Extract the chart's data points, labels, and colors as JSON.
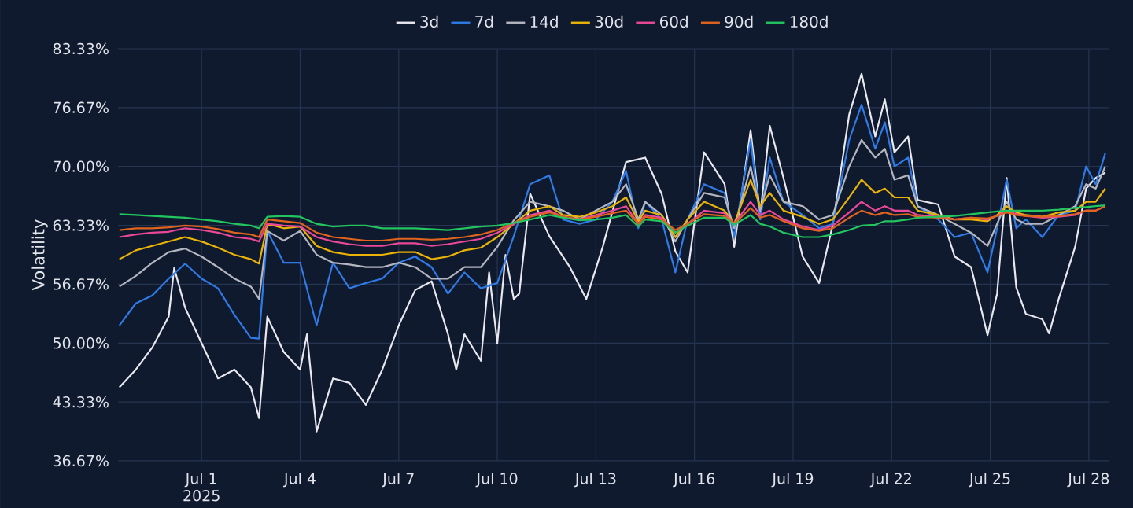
{
  "chart_data": {
    "type": "line",
    "ylabel": "Volatility",
    "legend": "top",
    "grid": true,
    "marker": "none",
    "line_style": "solid",
    "annotations": [
      "2025"
    ],
    "xlim": [
      "2025-06-28T11:00",
      "2025-07-28T15:00"
    ],
    "xticks": [
      {
        "value": "2025-07-01",
        "label": "Jul 1"
      },
      {
        "value": "2025-07-04",
        "label": "Jul 4"
      },
      {
        "value": "2025-07-07",
        "label": "Jul 7"
      },
      {
        "value": "2025-07-10",
        "label": "Jul 10"
      },
      {
        "value": "2025-07-13",
        "label": "Jul 13"
      },
      {
        "value": "2025-07-16",
        "label": "Jul 16"
      },
      {
        "value": "2025-07-19",
        "label": "Jul 19"
      },
      {
        "value": "2025-07-22",
        "label": "Jul 22"
      },
      {
        "value": "2025-07-25",
        "label": "Jul 25"
      },
      {
        "value": "2025-07-28",
        "label": "Jul 28"
      }
    ],
    "ylim": [
      36.67,
      83.33
    ],
    "yticks": [
      {
        "value": 36.67,
        "label": "36.67%"
      },
      {
        "value": 43.33,
        "label": "43.33%"
      },
      {
        "value": 50.0,
        "label": "50.00%"
      },
      {
        "value": 56.67,
        "label": "56.67%"
      },
      {
        "value": 63.33,
        "label": "63.33%"
      },
      {
        "value": 70.0,
        "label": "70.00%"
      },
      {
        "value": 76.67,
        "label": "76.67%"
      },
      {
        "value": 83.33,
        "label": "83.33%"
      }
    ],
    "x": [
      "2025-06-28T12:00",
      "2025-06-29T00:00",
      "2025-06-29T12:00",
      "2025-06-30T00:00",
      "2025-06-30T12:00",
      "2025-07-01T00:00",
      "2025-07-01T12:00",
      "2025-07-02T00:00",
      "2025-07-02T12:00",
      "2025-07-02T18:00",
      "2025-07-03T00:00",
      "2025-07-03T12:00",
      "2025-07-04T00:00",
      "2025-07-04T12:00",
      "2025-07-05T00:00",
      "2025-07-05T12:00",
      "2025-07-06T00:00",
      "2025-07-06T12:00",
      "2025-07-07T00:00",
      "2025-07-07T12:00",
      "2025-07-08T00:00",
      "2025-07-08T12:00",
      "2025-07-09T00:00",
      "2025-07-09T12:00",
      "2025-07-10T00:00",
      "2025-07-10T12:00",
      "2025-07-11T00:00",
      "2025-07-11T14:00",
      "2025-07-12T00:00",
      "2025-07-12T12:00",
      "2025-07-13T00:00",
      "2025-07-13T12:00",
      "2025-07-13T22:00",
      "2025-07-14T07:00",
      "2025-07-14T12:00",
      "2025-07-15T00:00",
      "2025-07-15T10:00",
      "2025-07-15T19:00",
      "2025-07-16T07:00",
      "2025-07-16T22:00",
      "2025-07-17T05:00",
      "2025-07-17T17:00",
      "2025-07-18T00:00",
      "2025-07-18T07:00",
      "2025-07-18T17:00",
      "2025-07-19T07:00",
      "2025-07-19T19:00",
      "2025-07-20T05:00",
      "2025-07-20T17:00",
      "2025-07-21T02:00",
      "2025-07-21T12:00",
      "2025-07-21T19:00",
      "2025-07-22T02:00",
      "2025-07-22T12:00",
      "2025-07-22T19:00",
      "2025-07-23T10:00",
      "2025-07-23T22:00",
      "2025-07-24T10:00",
      "2025-07-24T22:00",
      "2025-07-25T05:00",
      "2025-07-25T12:00",
      "2025-07-25T19:00",
      "2025-07-26T02:00",
      "2025-07-26T14:00",
      "2025-07-27T02:00",
      "2025-07-27T14:00",
      "2025-07-27T22:00",
      "2025-07-28T05:00",
      "2025-07-28T12:00"
    ],
    "series": [
      {
        "name": "3d",
        "color": "#e8e8ee",
        "x": [
          "2025-06-28T12:00",
          "2025-06-29T00:00",
          "2025-06-29T12:00",
          "2025-06-30T00:00",
          "2025-06-30T04:00",
          "2025-06-30T12:00",
          "2025-07-01T00:00",
          "2025-07-01T12:00",
          "2025-07-02T00:00",
          "2025-07-02T12:00",
          "2025-07-02T18:00",
          "2025-07-03T00:00",
          "2025-07-03T12:00",
          "2025-07-04T00:00",
          "2025-07-04T05:00",
          "2025-07-04T12:00",
          "2025-07-05T00:00",
          "2025-07-05T12:00",
          "2025-07-06T00:00",
          "2025-07-06T12:00",
          "2025-07-07T00:00",
          "2025-07-07T12:00",
          "2025-07-08T00:00",
          "2025-07-08T12:00",
          "2025-07-08T18:00",
          "2025-07-09T00:00",
          "2025-07-09T12:00",
          "2025-07-09T18:00",
          "2025-07-10T00:00",
          "2025-07-10T06:00",
          "2025-07-10T12:00",
          "2025-07-10T16:00",
          "2025-07-11T00:00",
          "2025-07-11T14:00",
          "2025-07-12T05:00",
          "2025-07-12T17:00",
          "2025-07-13T05:00",
          "2025-07-13T22:00",
          "2025-07-14T12:00",
          "2025-07-15T00:00",
          "2025-07-15T10:00",
          "2025-07-15T19:00",
          "2025-07-16T07:00",
          "2025-07-16T22:00",
          "2025-07-17T05:00",
          "2025-07-17T17:00",
          "2025-07-18T00:00",
          "2025-07-18T07:00",
          "2025-07-18T17:00",
          "2025-07-19T07:00",
          "2025-07-19T19:00",
          "2025-07-20T05:00",
          "2025-07-20T17:00",
          "2025-07-21T02:00",
          "2025-07-21T12:00",
          "2025-07-21T19:00",
          "2025-07-22T02:00",
          "2025-07-22T12:00",
          "2025-07-22T19:00",
          "2025-07-23T10:00",
          "2025-07-23T22:00",
          "2025-07-24T10:00",
          "2025-07-24T22:00",
          "2025-07-25T05:00",
          "2025-07-25T12:00",
          "2025-07-25T19:00",
          "2025-07-26T02:00",
          "2025-07-26T14:00",
          "2025-07-26T19:00",
          "2025-07-27T02:00",
          "2025-07-27T14:00",
          "2025-07-27T22:00",
          "2025-07-28T05:00",
          "2025-07-28T12:00"
        ],
        "values": [
          45,
          47,
          49.5,
          53,
          58.5,
          54,
          50,
          46,
          47,
          45,
          41.5,
          53,
          49,
          47,
          51,
          40,
          46,
          45.5,
          43,
          47,
          52,
          56,
          57,
          51,
          47,
          51,
          48,
          58,
          50,
          60,
          55,
          55.6,
          66.9,
          62.1,
          58.6,
          55,
          60.9,
          70.5,
          71,
          66.9,
          60.4,
          58,
          71.6,
          68,
          60.9,
          74.1,
          64.5,
          74.6,
          68.7,
          59.8,
          56.8,
          63.4,
          75.9,
          80.5,
          73.4,
          77.6,
          71.6,
          73.4,
          66.2,
          65.7,
          59.8,
          58.6,
          50.9,
          55.6,
          68.7,
          56.3,
          53.3,
          52.7,
          51.1,
          55,
          60.9,
          67.5,
          68.7,
          69.3
        ]
      },
      {
        "name": "7d",
        "color": "#2f7ae5",
        "values": [
          52,
          54.5,
          55.4,
          57.3,
          59,
          57.3,
          56.2,
          53.2,
          50.6,
          50.5,
          62.7,
          59.1,
          59.1,
          52,
          59.1,
          56.2,
          56.8,
          57.3,
          59.1,
          59.8,
          58.6,
          55.6,
          58,
          56.2,
          56.8,
          62.1,
          68,
          69,
          64,
          63.5,
          64,
          66,
          69.5,
          63,
          66,
          64,
          58,
          64,
          68,
          67,
          62,
          73,
          64,
          71,
          66,
          64.5,
          63,
          63.5,
          73,
          77,
          72,
          75,
          70,
          71,
          65.5,
          64,
          62,
          62.5,
          58,
          63,
          68.5,
          63,
          64,
          62,
          64.5,
          65,
          70,
          68,
          71.5
        ]
      },
      {
        "name": "14d",
        "color": "#b4b6c0",
        "values": [
          56.4,
          57.6,
          59.1,
          60.3,
          60.7,
          59.8,
          58.6,
          57.3,
          56.4,
          55,
          62.7,
          61.6,
          62.7,
          60,
          59.1,
          58.9,
          58.6,
          58.6,
          59.1,
          58.6,
          57.3,
          57.3,
          58.6,
          58.6,
          60.9,
          63.9,
          66,
          65.5,
          65,
          64,
          65,
          66,
          68,
          64,
          66,
          64.5,
          61.5,
          64,
          67,
          66.5,
          63,
          70,
          65,
          69,
          66,
          65.5,
          64,
          64.5,
          70,
          73,
          71,
          72,
          68.5,
          69,
          65.5,
          64.5,
          63.5,
          62.5,
          61,
          63.5,
          66,
          64,
          63.5,
          63.5,
          64.5,
          65.5,
          68,
          67.5,
          70
        ]
      },
      {
        "name": "30d",
        "color": "#eab308",
        "values": [
          59.5,
          60.5,
          61,
          61.5,
          62,
          61.5,
          60.8,
          60,
          59.5,
          59,
          63.5,
          63,
          63.2,
          61,
          60.3,
          60,
          60,
          60,
          60.3,
          60.3,
          59.5,
          59.8,
          60.5,
          60.8,
          62,
          63.5,
          65,
          65.5,
          64.5,
          64.3,
          64.8,
          65.5,
          66.5,
          63.8,
          65,
          64.5,
          62,
          64,
          66,
          65,
          63.5,
          68.5,
          65.5,
          67,
          65,
          64.3,
          63.5,
          64,
          66.5,
          68.5,
          67,
          67.5,
          66.5,
          66.5,
          65,
          64.5,
          64,
          64,
          63.8,
          64.5,
          65.5,
          64.8,
          64.5,
          64.3,
          64.8,
          65,
          66,
          66,
          67.5
        ]
      },
      {
        "name": "60d",
        "color": "#ec4899",
        "values": [
          62,
          62.3,
          62.5,
          62.6,
          63,
          62.8,
          62.5,
          62,
          61.8,
          61.5,
          63.5,
          63.3,
          63.2,
          62,
          61.5,
          61.2,
          61,
          61,
          61.3,
          61.3,
          61,
          61.2,
          61.5,
          61.8,
          62.5,
          63.5,
          64.5,
          65,
          64.3,
          64,
          64.5,
          65,
          65.5,
          63.5,
          64.5,
          64.2,
          62.5,
          63.5,
          65,
          64.7,
          63.5,
          66,
          64.5,
          65,
          64,
          63.2,
          62.8,
          63.3,
          64.8,
          66,
          65,
          65.5,
          65,
          65,
          64.5,
          64.3,
          64,
          64.2,
          64,
          64.4,
          65,
          64.6,
          64.4,
          64.2,
          64.3,
          64.5,
          65,
          65,
          65.5
        ]
      },
      {
        "name": "90d",
        "color": "#e0641e",
        "values": [
          62.8,
          63,
          63,
          63.1,
          63.3,
          63.2,
          62.9,
          62.5,
          62.3,
          62,
          64,
          63.8,
          63.6,
          62.5,
          62,
          61.8,
          61.6,
          61.6,
          61.8,
          61.8,
          61.7,
          61.8,
          62,
          62.3,
          62.8,
          63.6,
          64.3,
          64.8,
          64.3,
          64,
          64.3,
          64.7,
          65,
          63.5,
          64.3,
          64,
          62.8,
          63.5,
          64.6,
          64.4,
          63.5,
          65.3,
          64.2,
          64.5,
          63.8,
          63,
          62.7,
          63,
          64.2,
          65,
          64.5,
          64.8,
          64.5,
          64.6,
          64.3,
          64.2,
          64,
          64.2,
          64.1,
          64.4,
          64.8,
          64.5,
          64.4,
          64.3,
          64.4,
          64.6,
          65,
          65,
          65.5
        ]
      },
      {
        "name": "180d",
        "color": "#22c55e",
        "values": [
          64.6,
          64.5,
          64.4,
          64.3,
          64.2,
          64,
          63.8,
          63.5,
          63.3,
          63,
          64.3,
          64.4,
          64.3,
          63.5,
          63.2,
          63.3,
          63.3,
          63,
          63,
          63,
          62.9,
          62.8,
          63,
          63.2,
          63.3,
          63.6,
          64,
          64.5,
          64.2,
          63.9,
          64,
          64.2,
          64.5,
          63.2,
          64,
          63.8,
          62.5,
          63.3,
          64.2,
          64.2,
          63.4,
          64.5,
          63.5,
          63.2,
          62.5,
          62,
          62,
          62.3,
          62.8,
          63.3,
          63.4,
          63.8,
          63.8,
          64,
          64.2,
          64.3,
          64.4,
          64.6,
          64.8,
          64.9,
          65,
          65,
          65,
          65,
          65.1,
          65.3,
          65.4,
          65.5,
          65.6
        ]
      }
    ]
  }
}
